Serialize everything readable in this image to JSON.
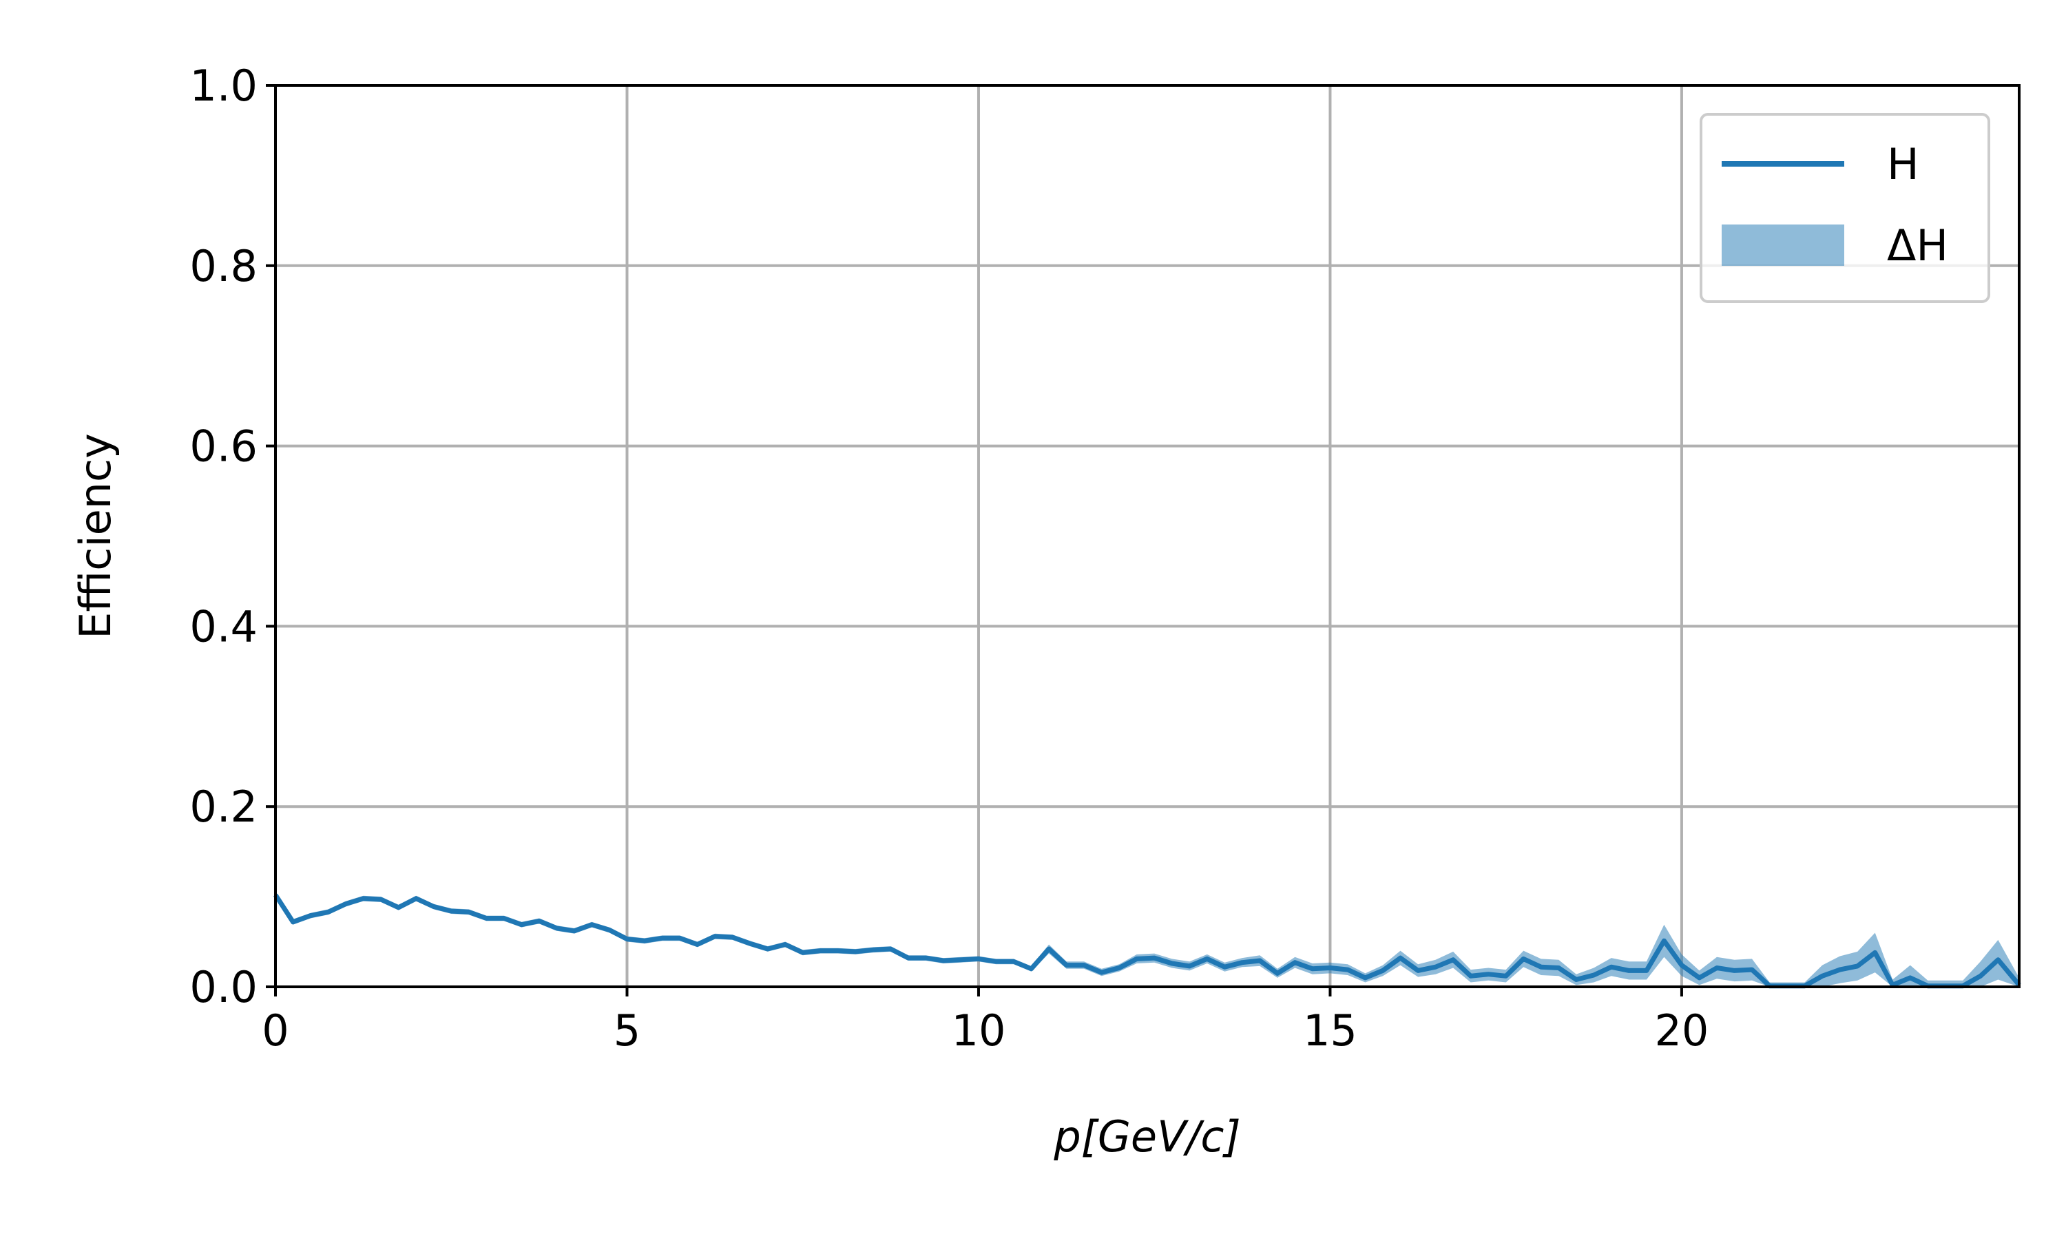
{
  "chart_data": {
    "type": "line",
    "xlabel": "p[GeV/c]",
    "ylabel": "Efficiency",
    "xlim": [
      0,
      24.8
    ],
    "ylim": [
      0,
      1.0
    ],
    "xticks": [
      0,
      5,
      10,
      15,
      20
    ],
    "xtick_labels": [
      "0",
      "5",
      "10",
      "15",
      "20"
    ],
    "yticks": [
      0.0,
      0.2,
      0.4,
      0.6,
      0.8,
      1.0
    ],
    "ytick_labels": [
      "0.0",
      "0.2",
      "0.4",
      "0.6",
      "0.8",
      "1.0"
    ],
    "grid": true,
    "legend": {
      "position": "top-right",
      "entries": [
        {
          "label": "H",
          "kind": "line"
        },
        {
          "label": "ΔH",
          "kind": "band"
        }
      ]
    },
    "colors": {
      "line": "#1f77b4",
      "band": "#1f77b4"
    },
    "series": [
      {
        "name": "H",
        "x": [
          0.0,
          0.25,
          0.5,
          0.75,
          1.0,
          1.25,
          1.5,
          1.75,
          2.0,
          2.25,
          2.5,
          2.75,
          3.0,
          3.25,
          3.5,
          3.75,
          4.0,
          4.25,
          4.5,
          4.75,
          5.0,
          5.25,
          5.5,
          5.75,
          6.0,
          6.25,
          6.5,
          6.75,
          7.0,
          7.25,
          7.5,
          7.75,
          8.0,
          8.25,
          8.5,
          8.75,
          9.0,
          9.25,
          9.5,
          9.75,
          10.0,
          10.25,
          10.5,
          10.75,
          11.0,
          11.25,
          11.5,
          11.75,
          12.0,
          12.25,
          12.5,
          12.75,
          13.0,
          13.25,
          13.5,
          13.75,
          14.0,
          14.25,
          14.5,
          14.75,
          15.0,
          15.25,
          15.5,
          15.75,
          16.0,
          16.25,
          16.5,
          16.75,
          17.0,
          17.25,
          17.5,
          17.75,
          18.0,
          18.25,
          18.5,
          18.75,
          19.0,
          19.25,
          19.5,
          19.75,
          20.0,
          20.25,
          20.5,
          20.75,
          21.0,
          21.25,
          21.5,
          21.75,
          22.0,
          22.25,
          22.5,
          22.75,
          23.0,
          23.25,
          23.5,
          23.75,
          24.0,
          24.25,
          24.5,
          24.8
        ],
        "y": [
          0.102,
          0.072,
          0.079,
          0.083,
          0.092,
          0.098,
          0.097,
          0.088,
          0.098,
          0.089,
          0.084,
          0.083,
          0.076,
          0.076,
          0.069,
          0.073,
          0.065,
          0.062,
          0.069,
          0.063,
          0.053,
          0.051,
          0.054,
          0.054,
          0.047,
          0.056,
          0.055,
          0.048,
          0.042,
          0.047,
          0.038,
          0.04,
          0.04,
          0.039,
          0.041,
          0.042,
          0.032,
          0.032,
          0.029,
          0.03,
          0.031,
          0.028,
          0.028,
          0.02,
          0.042,
          0.024,
          0.024,
          0.016,
          0.021,
          0.031,
          0.032,
          0.026,
          0.023,
          0.031,
          0.022,
          0.027,
          0.029,
          0.015,
          0.027,
          0.02,
          0.021,
          0.019,
          0.01,
          0.018,
          0.032,
          0.018,
          0.022,
          0.03,
          0.012,
          0.014,
          0.012,
          0.031,
          0.022,
          0.021,
          0.008,
          0.013,
          0.022,
          0.018,
          0.018,
          0.051,
          0.024,
          0.01,
          0.021,
          0.018,
          0.019,
          0.001,
          0.001,
          0.001,
          0.012,
          0.019,
          0.023,
          0.038,
          0.002,
          0.01,
          0.001,
          0.001,
          0.001,
          0.012,
          0.03,
          0.002
        ],
        "err": [
          0.004,
          0.003,
          0.003,
          0.003,
          0.003,
          0.003,
          0.003,
          0.003,
          0.003,
          0.003,
          0.003,
          0.003,
          0.003,
          0.003,
          0.003,
          0.003,
          0.003,
          0.003,
          0.003,
          0.003,
          0.003,
          0.003,
          0.003,
          0.003,
          0.003,
          0.003,
          0.003,
          0.003,
          0.003,
          0.003,
          0.003,
          0.003,
          0.003,
          0.003,
          0.003,
          0.003,
          0.003,
          0.003,
          0.003,
          0.003,
          0.003,
          0.003,
          0.003,
          0.003,
          0.005,
          0.004,
          0.004,
          0.004,
          0.004,
          0.005,
          0.005,
          0.005,
          0.005,
          0.005,
          0.005,
          0.005,
          0.006,
          0.005,
          0.006,
          0.006,
          0.006,
          0.006,
          0.005,
          0.006,
          0.008,
          0.007,
          0.008,
          0.009,
          0.007,
          0.007,
          0.007,
          0.009,
          0.009,
          0.009,
          0.006,
          0.008,
          0.01,
          0.01,
          0.01,
          0.018,
          0.012,
          0.008,
          0.012,
          0.012,
          0.012,
          0.004,
          0.004,
          0.004,
          0.012,
          0.015,
          0.016,
          0.022,
          0.006,
          0.014,
          0.006,
          0.006,
          0.006,
          0.016,
          0.022,
          0.008
        ]
      }
    ]
  }
}
